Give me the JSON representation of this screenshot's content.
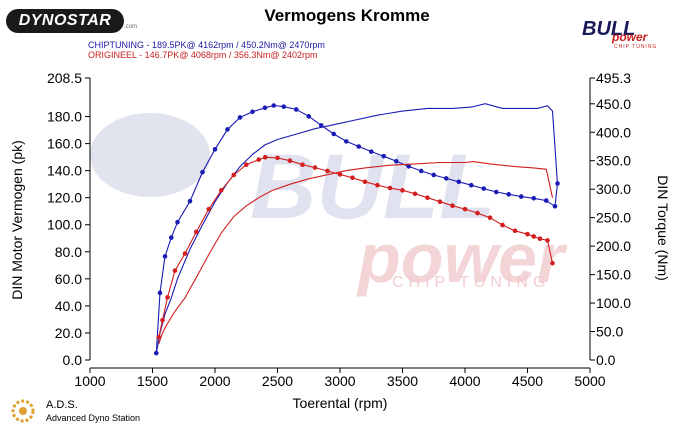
{
  "header": {
    "logo_left": "DYNOSTAR",
    "logo_left_small": ".com",
    "title": "Vermogens Kromme",
    "logo_right_main": "BULL",
    "logo_right_sub": "power",
    "logo_right_tag": "CHIP TUNING"
  },
  "legend": {
    "line1": "CHIPTUNING - 189.5PK@ 4162rpm / 450.2Nm@ 2470rpm",
    "line2": "ORIGINEEL - 146.7PK@ 4068rpm / 356.3Nm@ 2402rpm"
  },
  "watermark": {
    "main": "BULL",
    "sub": "power",
    "tag": "CHIP TUNING"
  },
  "footer": {
    "title": "A.D.S.",
    "subtitle": "Advanced Dyno Station"
  },
  "colors": {
    "chiptuning": "#1a1ab4",
    "origineel": "#d21e1e",
    "watermark": "#f0c8cc",
    "watermark_dark": "#c8cde2"
  },
  "chart_data": {
    "type": "line",
    "xlabel": "Toerental (rpm)",
    "ylabel_left": "DIN Motor Vermogen (pk)",
    "ylabel_right": "DIN Torque (Nm)",
    "xlim": [
      1000,
      5000
    ],
    "ylim_left": [
      0,
      208.5
    ],
    "ylim_right": [
      0,
      495.3
    ],
    "x_ticks": [
      "1000",
      "1500",
      "2000",
      "2500",
      "3000",
      "3500",
      "4000",
      "4500",
      "5000"
    ],
    "y_ticks_left": [
      "0.0",
      "20.0",
      "40.0",
      "60.0",
      "80.0",
      "100.0",
      "120.0",
      "140.0",
      "160.0",
      "180.0",
      "208.5"
    ],
    "y_ticks_right": [
      "0.0",
      "50.0",
      "100.0",
      "150.0",
      "200.0",
      "250.0",
      "300.0",
      "350.0",
      "400.0",
      "450.0",
      "495.3"
    ],
    "series": [
      {
        "name": "CHIPTUNING",
        "kind": "torque",
        "axis": "right",
        "color": "#1a1ab4",
        "x": [
          1530,
          1560,
          1600,
          1650,
          1700,
          1800,
          1900,
          2000,
          2100,
          2200,
          2300,
          2400,
          2470,
          2550,
          2650,
          2750,
          2850,
          2950,
          3050,
          3150,
          3250,
          3350,
          3450,
          3550,
          3650,
          3750,
          3850,
          3950,
          4050,
          4150,
          4250,
          4350,
          4450,
          4550,
          4650,
          4720,
          4740
        ],
        "y": [
          12,
          118,
          182,
          215,
          242,
          279,
          330,
          370,
          405,
          426,
          436,
          443,
          447,
          445,
          440,
          428,
          412,
          397,
          384,
          375,
          366,
          358,
          349,
          340,
          332,
          325,
          319,
          313,
          307,
          301,
          295,
          291,
          287,
          284,
          280,
          270,
          310
        ]
      },
      {
        "name": "CHIPTUNING",
        "kind": "power",
        "axis": "left",
        "color": "#1a1ab4",
        "x": [
          1530,
          1560,
          1600,
          1650,
          1700,
          1800,
          1900,
          2000,
          2100,
          2200,
          2300,
          2400,
          2500,
          2650,
          2800,
          2950,
          3100,
          3300,
          3500,
          3700,
          3900,
          4050,
          4162,
          4300,
          4450,
          4580,
          4660,
          4700,
          4740
        ],
        "y": [
          5,
          20,
          34,
          46,
          60,
          82,
          100,
          117,
          131,
          143,
          152,
          159,
          163,
          167,
          171,
          174,
          177,
          181,
          184,
          186,
          186,
          187,
          189.5,
          186,
          186,
          186,
          188,
          184,
          130
        ]
      },
      {
        "name": "ORIGINEEL",
        "kind": "torque",
        "axis": "right",
        "color": "#d21e1e",
        "x": [
          1550,
          1580,
          1620,
          1680,
          1760,
          1850,
          1950,
          2050,
          2150,
          2250,
          2350,
          2402,
          2500,
          2600,
          2700,
          2800,
          2900,
          3000,
          3100,
          3200,
          3300,
          3400,
          3500,
          3600,
          3700,
          3800,
          3900,
          4000,
          4100,
          4200,
          4300,
          4400,
          4500,
          4550,
          4600,
          4660,
          4700
        ],
        "y": [
          40,
          70,
          110,
          157,
          187,
          225,
          265,
          298,
          325,
          343,
          352,
          356,
          355,
          350,
          343,
          338,
          332,
          326,
          320,
          313,
          307,
          302,
          298,
          292,
          285,
          278,
          271,
          265,
          258,
          250,
          237,
          227,
          221,
          217,
          213,
          210,
          170
        ]
      },
      {
        "name": "ORIGINEEL",
        "kind": "power",
        "axis": "left",
        "color": "#d21e1e",
        "x": [
          1550,
          1580,
          1620,
          1680,
          1760,
          1850,
          1950,
          2050,
          2150,
          2250,
          2350,
          2450,
          2600,
          2750,
          2900,
          3050,
          3200,
          3400,
          3600,
          3800,
          4000,
          4068,
          4200,
          4400,
          4550,
          4650,
          4700
        ],
        "y": [
          12,
          20,
          27,
          36,
          46,
          61,
          78,
          94,
          106,
          114,
          120,
          125,
          130,
          134,
          137,
          140,
          142,
          144,
          145,
          146,
          146,
          146.7,
          145,
          143,
          142,
          141,
          120
        ]
      }
    ],
    "grid": false,
    "legend_position": "top-left"
  }
}
